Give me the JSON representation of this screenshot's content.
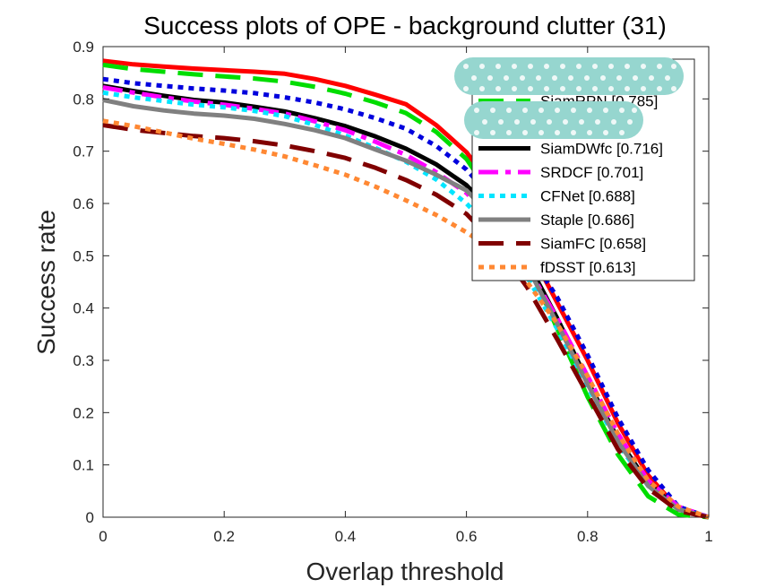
{
  "chart_data": {
    "type": "line",
    "title": "Success plots of OPE - background clutter (31)",
    "xlabel": "Overlap threshold",
    "ylabel": "Success rate",
    "xlim": [
      0,
      1
    ],
    "ylim": [
      0,
      0.9
    ],
    "xticks": [
      0,
      0.2,
      0.4,
      0.6,
      0.8,
      1
    ],
    "xtick_labels": [
      "0",
      "0.2",
      "0.4",
      "0.6",
      "0.8",
      "1"
    ],
    "yticks": [
      0,
      0.1,
      0.2,
      0.3,
      0.4,
      0.5,
      0.6,
      0.7,
      0.8,
      0.9
    ],
    "ytick_labels": [
      "0",
      "0.1",
      "0.2",
      "0.3",
      "0.4",
      "0.5",
      "0.6",
      "0.7",
      "0.8",
      "0.9"
    ],
    "grid": false,
    "legend_position": "top-right",
    "x": [
      0,
      0.05,
      0.1,
      0.15,
      0.2,
      0.25,
      0.3,
      0.35,
      0.4,
      0.45,
      0.5,
      0.55,
      0.6,
      0.65,
      0.7,
      0.75,
      0.8,
      0.85,
      0.9,
      0.95,
      1
    ],
    "series": [
      {
        "name": "",
        "label": "",
        "legend_redacted": true,
        "color": "#ff0000",
        "style": "solid",
        "width": 5,
        "values": [
          0.873,
          0.866,
          0.862,
          0.858,
          0.855,
          0.852,
          0.848,
          0.838,
          0.825,
          0.808,
          0.79,
          0.75,
          0.698,
          0.62,
          0.52,
          0.41,
          0.3,
          0.18,
          0.08,
          0.015,
          0
        ]
      },
      {
        "name": "SiamRPN",
        "label": "SiamRPN [0.785]",
        "color": "#00dd00",
        "style": "dashed",
        "width": 5,
        "values": [
          0.865,
          0.857,
          0.852,
          0.847,
          0.843,
          0.839,
          0.833,
          0.823,
          0.81,
          0.793,
          0.773,
          0.737,
          0.685,
          0.6,
          0.49,
          0.36,
          0.23,
          0.12,
          0.04,
          0.005,
          0
        ]
      },
      {
        "name": "",
        "label": "",
        "legend_redacted": true,
        "color": "#0000dd",
        "style": "dotted",
        "width": 5,
        "values": [
          0.838,
          0.83,
          0.825,
          0.82,
          0.816,
          0.811,
          0.803,
          0.793,
          0.78,
          0.763,
          0.743,
          0.71,
          0.665,
          0.6,
          0.51,
          0.42,
          0.31,
          0.19,
          0.09,
          0.02,
          0
        ]
      },
      {
        "name": "SiamDWfc",
        "label": "SiamDWfc [0.716]",
        "color": "#000000",
        "style": "solid",
        "width": 5,
        "values": [
          0.825,
          0.815,
          0.806,
          0.798,
          0.793,
          0.785,
          0.776,
          0.763,
          0.748,
          0.728,
          0.705,
          0.675,
          0.635,
          0.575,
          0.49,
          0.38,
          0.26,
          0.15,
          0.065,
          0.015,
          0
        ]
      },
      {
        "name": "SRDCF",
        "label": "SRDCF [0.701]",
        "color": "#ff00ff",
        "style": "dashdot",
        "width": 5,
        "values": [
          0.822,
          0.812,
          0.803,
          0.795,
          0.789,
          0.781,
          0.772,
          0.757,
          0.74,
          0.718,
          0.693,
          0.66,
          0.62,
          0.56,
          0.48,
          0.38,
          0.27,
          0.16,
          0.07,
          0.02,
          0
        ]
      },
      {
        "name": "CFNet",
        "label": "CFNet [0.688]",
        "color": "#00e5ff",
        "style": "dotted",
        "width": 5,
        "values": [
          0.812,
          0.803,
          0.796,
          0.789,
          0.784,
          0.777,
          0.767,
          0.75,
          0.73,
          0.706,
          0.68,
          0.646,
          0.6,
          0.54,
          0.46,
          0.36,
          0.25,
          0.14,
          0.06,
          0.015,
          0
        ]
      },
      {
        "name": "Staple",
        "label": "Staple [0.686]",
        "color": "#808080",
        "style": "solid",
        "width": 5,
        "values": [
          0.798,
          0.786,
          0.778,
          0.772,
          0.768,
          0.762,
          0.752,
          0.74,
          0.725,
          0.703,
          0.682,
          0.655,
          0.625,
          0.565,
          0.48,
          0.37,
          0.255,
          0.145,
          0.06,
          0.015,
          0
        ]
      },
      {
        "name": "SiamFC",
        "label": "SiamFC [0.658]",
        "color": "#800000",
        "style": "dashed",
        "width": 5,
        "values": [
          0.75,
          0.741,
          0.735,
          0.729,
          0.725,
          0.719,
          0.711,
          0.7,
          0.687,
          0.668,
          0.645,
          0.617,
          0.58,
          0.52,
          0.44,
          0.34,
          0.235,
          0.13,
          0.055,
          0.012,
          0
        ]
      },
      {
        "name": "fDSST",
        "label": "fDSST [0.613]",
        "color": "#ff8833",
        "style": "dotted",
        "width": 5,
        "values": [
          0.758,
          0.748,
          0.736,
          0.724,
          0.714,
          0.703,
          0.69,
          0.673,
          0.655,
          0.632,
          0.606,
          0.578,
          0.545,
          0.505,
          0.45,
          0.37,
          0.27,
          0.16,
          0.07,
          0.02,
          0
        ]
      }
    ]
  }
}
